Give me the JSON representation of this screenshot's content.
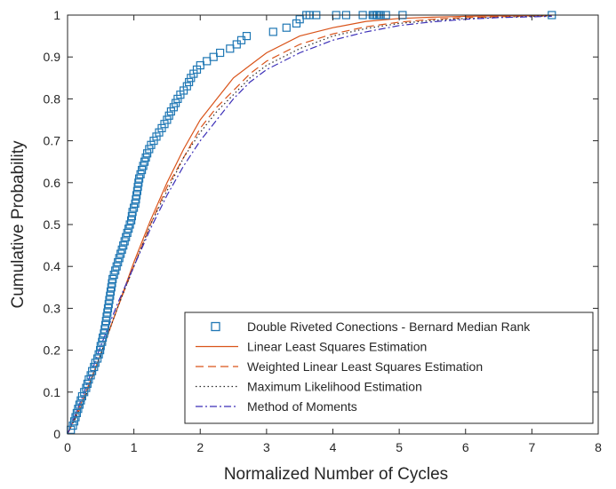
{
  "chart_data": {
    "type": "scatter",
    "title": "",
    "xlabel": "Normalized Number of Cycles",
    "ylabel": "Cumulative Probability",
    "xlim": [
      0,
      8
    ],
    "ylim": [
      0,
      1
    ],
    "xticks": [
      0,
      1,
      2,
      3,
      4,
      5,
      6,
      7,
      8
    ],
    "yticks": [
      0,
      0.1,
      0.2,
      0.3,
      0.4,
      0.5,
      0.6,
      0.7,
      0.8,
      0.9,
      1
    ],
    "ytick_labels": [
      "0",
      "0.1",
      "0.2",
      "0.3",
      "0.4",
      "0.5",
      "0.6",
      "0.7",
      "0.8",
      "0.9",
      "1"
    ],
    "grid": false,
    "legend_position": "bottom-right",
    "series": [
      {
        "name": "Double Riveted Conections - Bernard Median Rank",
        "kind": "markers",
        "marker": "square",
        "color": "#1f77b4",
        "x": [
          0.05,
          0.08,
          0.1,
          0.12,
          0.14,
          0.16,
          0.18,
          0.2,
          0.22,
          0.25,
          0.28,
          0.3,
          0.32,
          0.35,
          0.37,
          0.4,
          0.42,
          0.45,
          0.47,
          0.49,
          0.5,
          0.52,
          0.53,
          0.55,
          0.56,
          0.57,
          0.58,
          0.59,
          0.6,
          0.61,
          0.62,
          0.63,
          0.64,
          0.65,
          0.66,
          0.67,
          0.68,
          0.7,
          0.72,
          0.74,
          0.76,
          0.78,
          0.8,
          0.82,
          0.84,
          0.86,
          0.88,
          0.9,
          0.92,
          0.94,
          0.96,
          0.97,
          0.98,
          1.0,
          1.02,
          1.03,
          1.04,
          1.05,
          1.06,
          1.07,
          1.08,
          1.1,
          1.12,
          1.14,
          1.16,
          1.18,
          1.2,
          1.23,
          1.26,
          1.3,
          1.34,
          1.38,
          1.42,
          1.46,
          1.5,
          1.53,
          1.56,
          1.6,
          1.63,
          1.66,
          1.7,
          1.75,
          1.8,
          1.83,
          1.86,
          1.9,
          1.95,
          2.0,
          2.1,
          2.2,
          2.3,
          2.45,
          2.55,
          2.62,
          2.7,
          3.1,
          3.3,
          3.45,
          3.5,
          3.6,
          3.65,
          3.75,
          4.05,
          4.2,
          4.45,
          4.6,
          4.62,
          4.65,
          4.67,
          4.7,
          4.72,
          4.8,
          5.05,
          7.3
        ],
        "y": [
          0.01,
          0.02,
          0.03,
          0.04,
          0.05,
          0.06,
          0.07,
          0.08,
          0.09,
          0.1,
          0.11,
          0.12,
          0.13,
          0.14,
          0.15,
          0.16,
          0.17,
          0.18,
          0.19,
          0.2,
          0.21,
          0.22,
          0.23,
          0.24,
          0.25,
          0.26,
          0.27,
          0.28,
          0.29,
          0.3,
          0.31,
          0.32,
          0.33,
          0.34,
          0.35,
          0.36,
          0.37,
          0.38,
          0.39,
          0.4,
          0.41,
          0.42,
          0.43,
          0.44,
          0.45,
          0.46,
          0.47,
          0.48,
          0.49,
          0.5,
          0.51,
          0.52,
          0.53,
          0.54,
          0.55,
          0.56,
          0.57,
          0.58,
          0.59,
          0.6,
          0.61,
          0.62,
          0.63,
          0.64,
          0.65,
          0.66,
          0.67,
          0.68,
          0.69,
          0.7,
          0.71,
          0.72,
          0.73,
          0.74,
          0.75,
          0.76,
          0.77,
          0.78,
          0.79,
          0.8,
          0.81,
          0.82,
          0.83,
          0.84,
          0.85,
          0.86,
          0.87,
          0.88,
          0.89,
          0.9,
          0.91,
          0.92,
          0.93,
          0.94,
          0.95,
          0.96,
          0.97,
          0.98,
          0.99,
          1.0,
          1.0,
          1.0,
          1.0,
          1.0,
          1.0,
          1.0,
          1.0,
          1.0,
          1.0,
          1.0,
          1.0,
          1.0,
          1.0,
          1.0
        ],
        "x_values_note": ""
      },
      {
        "name": "Linear Least Squares Estimation",
        "kind": "line",
        "dash": "solid",
        "color": "#d95319",
        "x": [
          0,
          0.25,
          0.5,
          0.75,
          1,
          1.25,
          1.5,
          1.75,
          2,
          2.25,
          2.5,
          2.75,
          3,
          3.5,
          4,
          4.5,
          5,
          5.5,
          6,
          6.5,
          7,
          7.3
        ],
        "y": [
          0,
          0.09,
          0.19,
          0.3,
          0.41,
          0.51,
          0.6,
          0.68,
          0.75,
          0.8,
          0.85,
          0.88,
          0.91,
          0.95,
          0.97,
          0.985,
          0.992,
          0.995,
          0.997,
          0.998,
          0.999,
          0.999
        ]
      },
      {
        "name": "Weighted Linear Least Squares Estimation",
        "kind": "line",
        "dash": "dashed",
        "color": "#d95319",
        "x": [
          0,
          0.25,
          0.5,
          0.75,
          1,
          1.25,
          1.5,
          1.75,
          2,
          2.25,
          2.5,
          2.75,
          3,
          3.5,
          4,
          4.5,
          5,
          5.5,
          6,
          6.5,
          7,
          7.3
        ],
        "y": [
          0,
          0.08,
          0.19,
          0.3,
          0.4,
          0.5,
          0.59,
          0.66,
          0.73,
          0.78,
          0.82,
          0.86,
          0.89,
          0.93,
          0.955,
          0.972,
          0.983,
          0.99,
          0.994,
          0.996,
          0.998,
          0.998
        ]
      },
      {
        "name": "Maximum Likelihood Estimation",
        "kind": "line",
        "dash": "dotted",
        "color": "#262626",
        "x": [
          0,
          0.25,
          0.5,
          0.75,
          1,
          1.25,
          1.5,
          1.75,
          2,
          2.25,
          2.5,
          2.75,
          3,
          3.5,
          4,
          4.5,
          5,
          5.5,
          6,
          6.5,
          7,
          7.3
        ],
        "y": [
          0,
          0.08,
          0.19,
          0.3,
          0.4,
          0.5,
          0.58,
          0.66,
          0.72,
          0.77,
          0.81,
          0.85,
          0.88,
          0.92,
          0.95,
          0.968,
          0.98,
          0.987,
          0.992,
          0.995,
          0.997,
          0.998
        ]
      },
      {
        "name": "Method of Moments",
        "kind": "line",
        "dash": "dashdot",
        "color": "#3b2fb8",
        "x": [
          0,
          0.25,
          0.5,
          0.75,
          1,
          1.25,
          1.5,
          1.75,
          2,
          2.25,
          2.5,
          2.75,
          3,
          3.5,
          4,
          4.5,
          5,
          5.5,
          6,
          6.5,
          7,
          7.3
        ],
        "y": [
          0,
          0.1,
          0.21,
          0.31,
          0.4,
          0.49,
          0.57,
          0.64,
          0.7,
          0.75,
          0.8,
          0.84,
          0.87,
          0.91,
          0.94,
          0.96,
          0.975,
          0.984,
          0.99,
          0.994,
          0.996,
          0.997
        ]
      }
    ]
  }
}
